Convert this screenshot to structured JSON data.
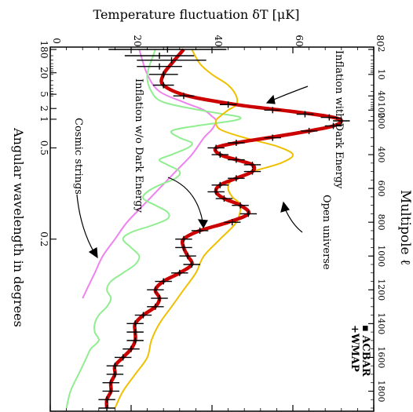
{
  "colors": {
    "best_fit": "#cc0000",
    "open_universe": "#f0c000",
    "no_dark_energy": "#90ee90",
    "cosmic_strings": "#ee82ee",
    "data_points": "#000000",
    "axes": "#000000"
  },
  "chart_data": {
    "type": "line",
    "orientation": "rotated-90-clockwise",
    "xlabel": "Multipole ℓ",
    "ylabel": "Temperature fluctuation δT  [μK]",
    "secondary_xlabel": "Angular wavelength in degrees",
    "xlim": [
      2,
      1900
    ],
    "ylim": [
      0,
      80
    ],
    "x_ticks": [
      "2",
      "10",
      "40",
      "100",
      "200",
      "400",
      "600",
      "800",
      "1000",
      "1200",
      "1400",
      "1600",
      "1800"
    ],
    "y_ticks": [
      "0",
      "20",
      "40",
      "60",
      "80"
    ],
    "secondary_x_ticks": [
      "180",
      "20",
      "5",
      "2",
      "1",
      "0.5",
      "0.2"
    ],
    "legend": [
      "+WMAP",
      "▪ ACBAR"
    ],
    "annotations": [
      "Inflation with Dark Energy",
      "Inflation w/o Dark Energy",
      "Open universe",
      "Cosmic strings"
    ],
    "series": [
      {
        "key": "best_fit",
        "x": [
          2,
          5,
          10,
          20,
          40,
          70,
          100,
          130,
          160,
          200,
          230,
          260,
          300,
          330,
          360,
          400,
          430,
          460,
          500,
          540,
          580,
          620,
          660,
          700,
          750,
          800,
          850,
          900,
          950,
          1000,
          1050,
          1100,
          1150,
          1200,
          1250,
          1300,
          1350,
          1400,
          1450,
          1500,
          1550,
          1600,
          1650,
          1700,
          1750,
          1800,
          1850,
          1900
        ],
        "y": [
          33,
          30,
          28,
          28,
          34,
          46,
          57,
          65,
          70,
          72,
          70,
          64,
          54,
          46,
          41,
          42,
          46,
          50,
          50,
          46,
          42,
          41,
          43,
          47,
          49,
          44,
          37,
          33,
          33,
          34,
          35,
          32,
          28,
          26,
          27,
          26,
          23,
          21,
          21,
          21,
          20,
          18,
          16,
          16,
          15,
          15,
          14,
          14
        ]
      },
      {
        "key": "open_universe",
        "x": [
          2,
          5,
          10,
          20,
          40,
          70,
          100,
          150,
          200,
          250,
          300,
          350,
          400,
          450,
          500,
          550,
          600,
          650,
          700,
          800,
          900,
          1000,
          1100,
          1200,
          1300,
          1400,
          1500,
          1600,
          1700,
          1800,
          1900
        ],
        "y": [
          35,
          37,
          40,
          44,
          46,
          46,
          44,
          42,
          41,
          42,
          48,
          56,
          60,
          57,
          50,
          45,
          44,
          45,
          47,
          46,
          42,
          38,
          36,
          33,
          30,
          27,
          25,
          24,
          21,
          18,
          16
        ]
      },
      {
        "key": "no_dark_energy",
        "x": [
          2,
          10,
          30,
          60,
          100,
          130,
          160,
          200,
          230,
          260,
          300,
          330,
          360,
          400,
          430,
          460,
          500,
          540,
          580,
          620,
          660,
          700,
          740,
          780,
          820,
          860,
          900,
          950,
          1000,
          1050,
          1100,
          1150,
          1200,
          1250,
          1300,
          1350,
          1400,
          1450,
          1500,
          1550,
          1600,
          1700,
          1800,
          1900
        ],
        "y": [
          26,
          24,
          25,
          28,
          37,
          43,
          47,
          45,
          36,
          30,
          32,
          35,
          34,
          30,
          27,
          29,
          32,
          31,
          27,
          24,
          23,
          26,
          29,
          29,
          25,
          20,
          18,
          20,
          22,
          21,
          18,
          15,
          14,
          15,
          14,
          12,
          11,
          11,
          12,
          10,
          9,
          7,
          5,
          4
        ]
      },
      {
        "key": "cosmic_strings",
        "x": [
          2,
          10,
          30,
          60,
          100,
          150,
          200,
          250,
          300,
          400,
          500,
          600,
          700,
          800,
          900,
          1000,
          1100,
          1200,
          1250
        ],
        "y": [
          22,
          24,
          27,
          33,
          38,
          40,
          41,
          40,
          38,
          35,
          31,
          27,
          23,
          19,
          16,
          13,
          11,
          9,
          8
        ]
      }
    ],
    "points": [
      {
        "x": 2,
        "y": 29,
        "err": 14
      },
      {
        "x": 3,
        "y": 27,
        "err": 8
      },
      {
        "x": 4,
        "y": 30,
        "err": 8
      },
      {
        "x": 6,
        "y": 27,
        "err": 5
      },
      {
        "x": 10,
        "y": 28,
        "err": 3
      },
      {
        "x": 20,
        "y": 28,
        "err": 2
      },
      {
        "x": 40,
        "y": 33,
        "err": 2
      },
      {
        "x": 70,
        "y": 44,
        "err": 1.5
      },
      {
        "x": 100,
        "y": 55,
        "err": 1.5
      },
      {
        "x": 130,
        "y": 63,
        "err": 1.5
      },
      {
        "x": 160,
        "y": 69,
        "err": 1.5
      },
      {
        "x": 200,
        "y": 72,
        "err": 1.5
      },
      {
        "x": 230,
        "y": 70,
        "err": 1.5
      },
      {
        "x": 260,
        "y": 64,
        "err": 1.5
      },
      {
        "x": 300,
        "y": 55,
        "err": 1.5
      },
      {
        "x": 330,
        "y": 46,
        "err": 1.5
      },
      {
        "x": 360,
        "y": 41,
        "err": 1.5
      },
      {
        "x": 400,
        "y": 42,
        "err": 1.5
      },
      {
        "x": 430,
        "y": 46,
        "err": 1.5
      },
      {
        "x": 460,
        "y": 50,
        "err": 1.5
      },
      {
        "x": 500,
        "y": 50,
        "err": 1.5
      },
      {
        "x": 540,
        "y": 46,
        "err": 1.5
      },
      {
        "x": 580,
        "y": 42,
        "err": 1.5
      },
      {
        "x": 620,
        "y": 41,
        "err": 1.5
      },
      {
        "x": 660,
        "y": 43,
        "err": 1.5
      },
      {
        "x": 700,
        "y": 47,
        "err": 1.5
      },
      {
        "x": 750,
        "y": 49,
        "err": 1.5
      },
      {
        "x": 800,
        "y": 45,
        "err": 1.5
      },
      {
        "x": 850,
        "y": 37,
        "err": 1.5
      },
      {
        "x": 900,
        "y": 33,
        "err": 1.5
      },
      {
        "x": 950,
        "y": 33,
        "err": 1.5
      },
      {
        "x": 1000,
        "y": 34,
        "err": 1.5
      },
      {
        "x": 1050,
        "y": 35,
        "err": 1.5
      },
      {
        "x": 1100,
        "y": 32,
        "err": 1.5
      },
      {
        "x": 1150,
        "y": 28,
        "err": 1.5
      },
      {
        "x": 1200,
        "y": 26,
        "err": 1.5
      },
      {
        "x": 1250,
        "y": 27,
        "err": 1.5
      },
      {
        "x": 1300,
        "y": 26,
        "err": 1.5
      },
      {
        "x": 1350,
        "y": 23,
        "err": 1.5
      },
      {
        "x": 1400,
        "y": 21,
        "err": 1.5
      },
      {
        "x": 1450,
        "y": 21,
        "err": 1.5
      },
      {
        "x": 1500,
        "y": 21,
        "err": 1.5
      },
      {
        "x": 1550,
        "y": 20,
        "err": 1.5
      },
      {
        "x": 1600,
        "y": 18,
        "err": 1.5
      },
      {
        "x": 1650,
        "y": 16,
        "err": 1.5
      },
      {
        "x": 1700,
        "y": 16,
        "err": 1.5
      },
      {
        "x": 1750,
        "y": 15,
        "err": 1.5
      },
      {
        "x": 1800,
        "y": 15,
        "err": 1.5
      },
      {
        "x": 1850,
        "y": 14,
        "err": 1.5
      },
      {
        "x": 1900,
        "y": 14,
        "err": 1.5
      }
    ],
    "grid": false
  }
}
